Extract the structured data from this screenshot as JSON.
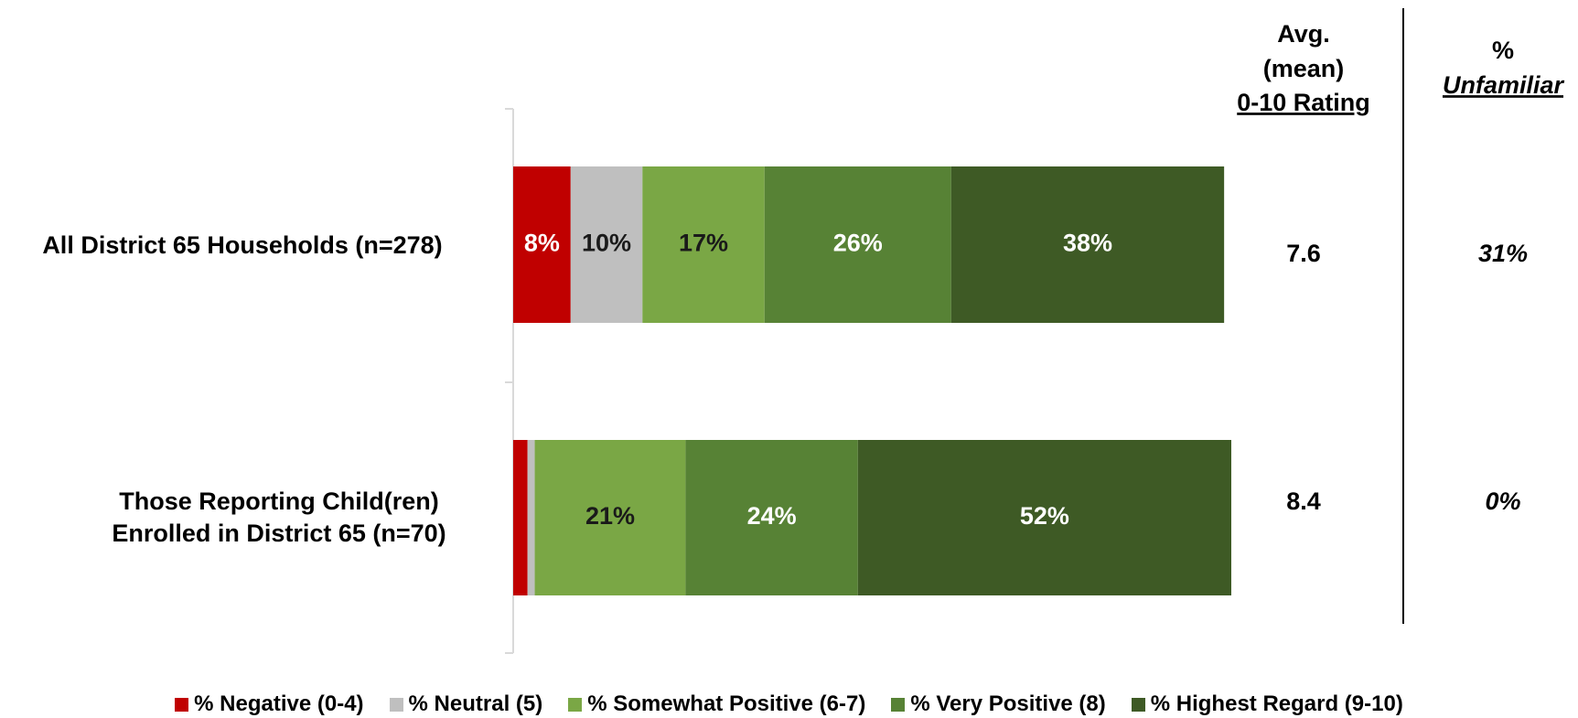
{
  "chart_data": {
    "type": "stacked_barh",
    "categories": [
      "All District 65 Households (n=278)",
      "Those Reporting Child(ren) Enrolled in District 65 (n=70)"
    ],
    "xlim": [
      0,
      100
    ],
    "series": [
      {
        "name": "% Negative (0-4)",
        "color": "#c00000",
        "label_color": "#ffffff",
        "values": [
          8,
          2
        ],
        "value_labels": [
          "8%",
          null
        ]
      },
      {
        "name": "% Neutral (5)",
        "color": "#bfbfbf",
        "label_color": "#1a1a1a",
        "values": [
          10,
          1
        ],
        "value_labels": [
          "10%",
          null
        ]
      },
      {
        "name": "% Somewhat Positive (6-7)",
        "color": "#7aa745",
        "label_color": "#1a1a1a",
        "values": [
          17,
          21
        ],
        "value_labels": [
          "17%",
          "21%"
        ]
      },
      {
        "name": "% Very Positive (8)",
        "color": "#578235",
        "label_color": "#ffffff",
        "values": [
          26,
          24
        ],
        "value_labels": [
          "26%",
          "24%"
        ]
      },
      {
        "name": "% Highest Regard (9-10)",
        "color": "#3e5a25",
        "label_color": "#ffffff",
        "values": [
          38,
          52
        ],
        "value_labels": [
          "38%",
          "52%"
        ]
      }
    ],
    "mean_header": [
      "Avg.",
      "(mean)",
      "0-10 Rating"
    ],
    "mean_ratings": [
      7.6,
      8.4
    ],
    "unfamiliar_header": [
      "%",
      "Unfamiliar"
    ],
    "unfamiliar": {
      "values": [
        31,
        0
      ],
      "value_labels": [
        "31%",
        "0%"
      ]
    }
  }
}
